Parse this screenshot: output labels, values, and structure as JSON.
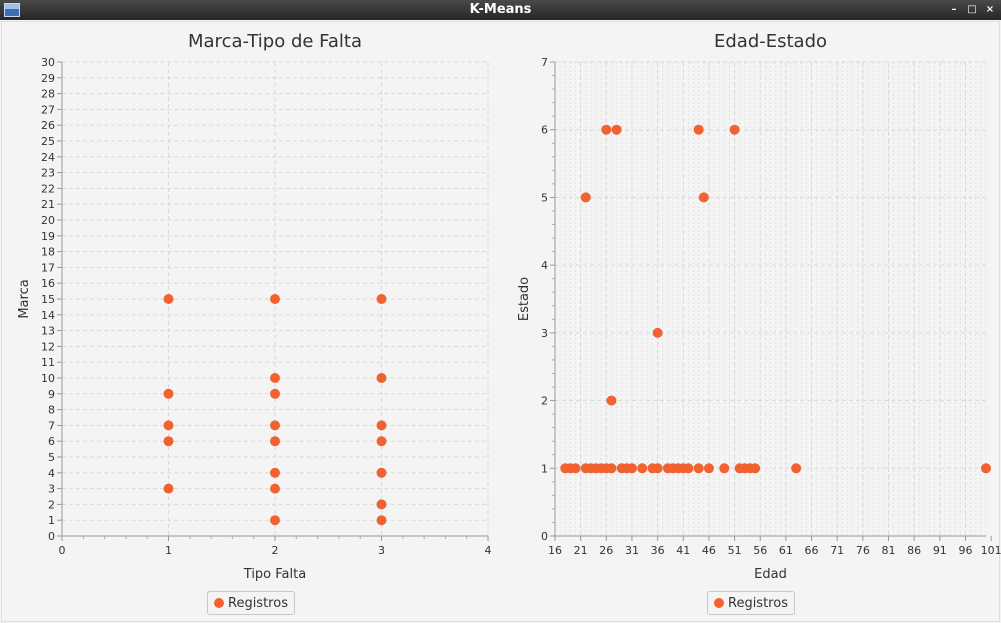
{
  "window": {
    "title": "K-Means"
  },
  "legend_label": "Registros",
  "colors": {
    "point": "#f26130",
    "plot_bg": "#f4f4f4",
    "grid": "#d9d9d9"
  },
  "chart_data": [
    {
      "type": "scatter",
      "title": "Marca-Tipo de Falta",
      "xlabel": "Tipo Falta",
      "ylabel": "Marca",
      "xlim": [
        0,
        4
      ],
      "ylim": [
        0,
        30
      ],
      "x_ticks": [
        0,
        1,
        2,
        3,
        4
      ],
      "y_ticks": [
        0,
        1,
        2,
        3,
        4,
        5,
        6,
        7,
        8,
        9,
        10,
        11,
        12,
        13,
        14,
        15,
        16,
        17,
        18,
        19,
        20,
        21,
        22,
        23,
        24,
        25,
        26,
        27,
        28,
        29,
        30
      ],
      "legend": "bottom",
      "grid": true,
      "series": [
        {
          "name": "Registros",
          "points": [
            [
              1,
              15
            ],
            [
              1,
              9
            ],
            [
              1,
              7
            ],
            [
              1,
              6
            ],
            [
              1,
              3
            ],
            [
              2,
              15
            ],
            [
              2,
              10
            ],
            [
              2,
              9
            ],
            [
              2,
              7
            ],
            [
              2,
              6
            ],
            [
              2,
              4
            ],
            [
              2,
              3
            ],
            [
              2,
              1
            ],
            [
              3,
              15
            ],
            [
              3,
              10
            ],
            [
              3,
              7
            ],
            [
              3,
              6
            ],
            [
              3,
              4
            ],
            [
              3,
              2
            ],
            [
              3,
              1
            ]
          ]
        }
      ]
    },
    {
      "type": "scatter",
      "title": "Edad-Estado",
      "xlabel": "Edad",
      "ylabel": "Estado",
      "xlim": [
        16,
        100
      ],
      "ylim": [
        0,
        7
      ],
      "x_ticks": [
        16,
        21,
        26,
        31,
        36,
        41,
        46,
        51,
        56,
        61,
        66,
        71,
        76,
        81,
        86,
        91,
        96,
        101
      ],
      "y_ticks": [
        0,
        1,
        2,
        3,
        4,
        5,
        6,
        7
      ],
      "legend": "bottom",
      "grid": true,
      "series": [
        {
          "name": "Registros",
          "points": [
            [
              18,
              1
            ],
            [
              19,
              1
            ],
            [
              20,
              1
            ],
            [
              22,
              1
            ],
            [
              23,
              1
            ],
            [
              24,
              1
            ],
            [
              25,
              1
            ],
            [
              26,
              1
            ],
            [
              27,
              1
            ],
            [
              29,
              1
            ],
            [
              30,
              1
            ],
            [
              31,
              1
            ],
            [
              33,
              1
            ],
            [
              35,
              1
            ],
            [
              36,
              1
            ],
            [
              38,
              1
            ],
            [
              39,
              1
            ],
            [
              40,
              1
            ],
            [
              41,
              1
            ],
            [
              42,
              1
            ],
            [
              44,
              1
            ],
            [
              46,
              1
            ],
            [
              49,
              1
            ],
            [
              52,
              1
            ],
            [
              53,
              1
            ],
            [
              54,
              1
            ],
            [
              55,
              1
            ],
            [
              63,
              1
            ],
            [
              100,
              1
            ],
            [
              27,
              2
            ],
            [
              36,
              3
            ],
            [
              22,
              5
            ],
            [
              45,
              5
            ],
            [
              26,
              6
            ],
            [
              28,
              6
            ],
            [
              44,
              6
            ],
            [
              51,
              6
            ]
          ]
        }
      ]
    }
  ]
}
